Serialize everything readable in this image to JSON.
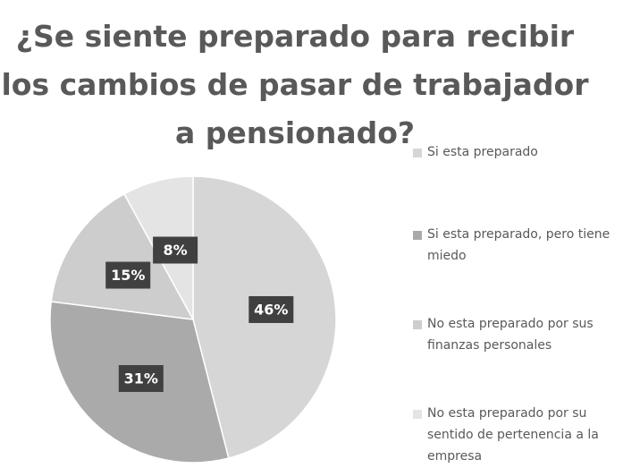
{
  "chart_data": {
    "type": "pie",
    "title": "¿Se siente preparado para recibir los cambios de pasar de trabajador a pensionado?",
    "categories": [
      "Si esta preparado",
      "Si esta preparado, pero tiene miedo",
      "No esta preparado por sus finanzas personales",
      "No esta preparado por su sentido de pertenencia a la empresa"
    ],
    "values": [
      46,
      31,
      15,
      8
    ],
    "value_labels": [
      "46%",
      "31%",
      "15%",
      "8%"
    ],
    "colors": [
      "#d6d6d6",
      "#aaaaaa",
      "#cdcdcd",
      "#e4e4e4"
    ],
    "legend": "right"
  }
}
